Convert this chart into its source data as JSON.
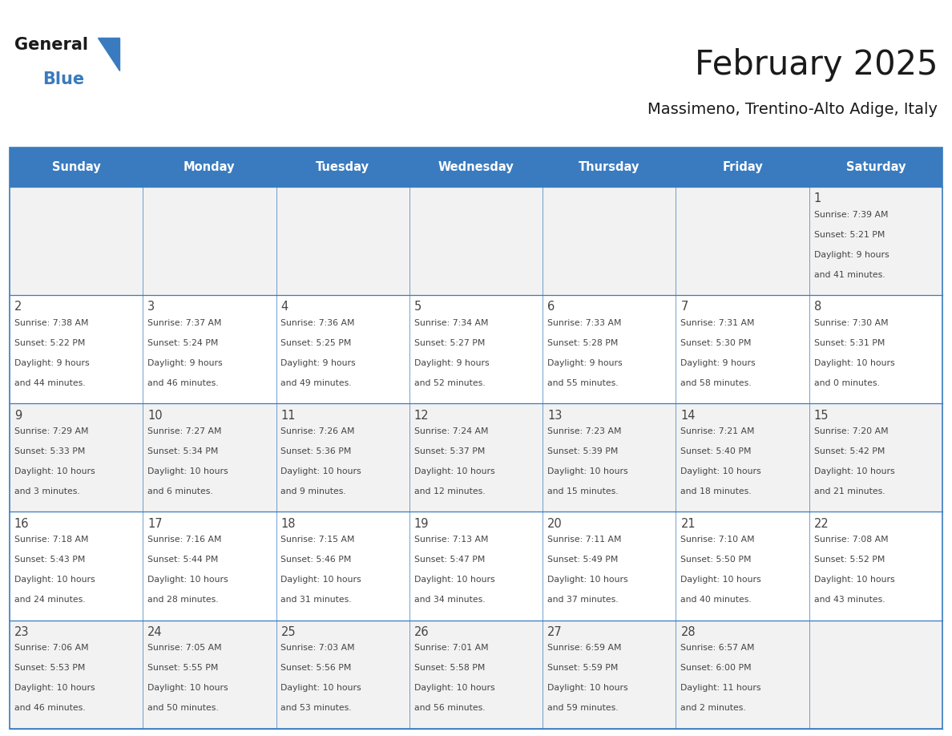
{
  "title": "February 2025",
  "subtitle": "Massimeno, Trentino-Alto Adige, Italy",
  "days_of_week": [
    "Sunday",
    "Monday",
    "Tuesday",
    "Wednesday",
    "Thursday",
    "Friday",
    "Saturday"
  ],
  "header_bg": "#3a7bbf",
  "header_text": "#ffffff",
  "cell_bg_even": "#f2f2f2",
  "cell_bg_odd": "#ffffff",
  "border_color": "#3a7bbf",
  "text_color": "#444444",
  "title_color": "#1a1a1a",
  "logo_general_color": "#1a1a1a",
  "logo_blue_color": "#3a7bbf",
  "fig_width": 11.88,
  "fig_height": 9.18,
  "calendar_data": [
    [
      null,
      null,
      null,
      null,
      null,
      null,
      {
        "day": 1,
        "sunrise": "7:39 AM",
        "sunset": "5:21 PM",
        "daylight_h": "9 hours",
        "daylight_m": "41 minutes."
      }
    ],
    [
      {
        "day": 2,
        "sunrise": "7:38 AM",
        "sunset": "5:22 PM",
        "daylight_h": "9 hours",
        "daylight_m": "44 minutes."
      },
      {
        "day": 3,
        "sunrise": "7:37 AM",
        "sunset": "5:24 PM",
        "daylight_h": "9 hours",
        "daylight_m": "46 minutes."
      },
      {
        "day": 4,
        "sunrise": "7:36 AM",
        "sunset": "5:25 PM",
        "daylight_h": "9 hours",
        "daylight_m": "49 minutes."
      },
      {
        "day": 5,
        "sunrise": "7:34 AM",
        "sunset": "5:27 PM",
        "daylight_h": "9 hours",
        "daylight_m": "52 minutes."
      },
      {
        "day": 6,
        "sunrise": "7:33 AM",
        "sunset": "5:28 PM",
        "daylight_h": "9 hours",
        "daylight_m": "55 minutes."
      },
      {
        "day": 7,
        "sunrise": "7:31 AM",
        "sunset": "5:30 PM",
        "daylight_h": "9 hours",
        "daylight_m": "58 minutes."
      },
      {
        "day": 8,
        "sunrise": "7:30 AM",
        "sunset": "5:31 PM",
        "daylight_h": "10 hours",
        "daylight_m": "0 minutes."
      }
    ],
    [
      {
        "day": 9,
        "sunrise": "7:29 AM",
        "sunset": "5:33 PM",
        "daylight_h": "10 hours",
        "daylight_m": "3 minutes."
      },
      {
        "day": 10,
        "sunrise": "7:27 AM",
        "sunset": "5:34 PM",
        "daylight_h": "10 hours",
        "daylight_m": "6 minutes."
      },
      {
        "day": 11,
        "sunrise": "7:26 AM",
        "sunset": "5:36 PM",
        "daylight_h": "10 hours",
        "daylight_m": "9 minutes."
      },
      {
        "day": 12,
        "sunrise": "7:24 AM",
        "sunset": "5:37 PM",
        "daylight_h": "10 hours",
        "daylight_m": "12 minutes."
      },
      {
        "day": 13,
        "sunrise": "7:23 AM",
        "sunset": "5:39 PM",
        "daylight_h": "10 hours",
        "daylight_m": "15 minutes."
      },
      {
        "day": 14,
        "sunrise": "7:21 AM",
        "sunset": "5:40 PM",
        "daylight_h": "10 hours",
        "daylight_m": "18 minutes."
      },
      {
        "day": 15,
        "sunrise": "7:20 AM",
        "sunset": "5:42 PM",
        "daylight_h": "10 hours",
        "daylight_m": "21 minutes."
      }
    ],
    [
      {
        "day": 16,
        "sunrise": "7:18 AM",
        "sunset": "5:43 PM",
        "daylight_h": "10 hours",
        "daylight_m": "24 minutes."
      },
      {
        "day": 17,
        "sunrise": "7:16 AM",
        "sunset": "5:44 PM",
        "daylight_h": "10 hours",
        "daylight_m": "28 minutes."
      },
      {
        "day": 18,
        "sunrise": "7:15 AM",
        "sunset": "5:46 PM",
        "daylight_h": "10 hours",
        "daylight_m": "31 minutes."
      },
      {
        "day": 19,
        "sunrise": "7:13 AM",
        "sunset": "5:47 PM",
        "daylight_h": "10 hours",
        "daylight_m": "34 minutes."
      },
      {
        "day": 20,
        "sunrise": "7:11 AM",
        "sunset": "5:49 PM",
        "daylight_h": "10 hours",
        "daylight_m": "37 minutes."
      },
      {
        "day": 21,
        "sunrise": "7:10 AM",
        "sunset": "5:50 PM",
        "daylight_h": "10 hours",
        "daylight_m": "40 minutes."
      },
      {
        "day": 22,
        "sunrise": "7:08 AM",
        "sunset": "5:52 PM",
        "daylight_h": "10 hours",
        "daylight_m": "43 minutes."
      }
    ],
    [
      {
        "day": 23,
        "sunrise": "7:06 AM",
        "sunset": "5:53 PM",
        "daylight_h": "10 hours",
        "daylight_m": "46 minutes."
      },
      {
        "day": 24,
        "sunrise": "7:05 AM",
        "sunset": "5:55 PM",
        "daylight_h": "10 hours",
        "daylight_m": "50 minutes."
      },
      {
        "day": 25,
        "sunrise": "7:03 AM",
        "sunset": "5:56 PM",
        "daylight_h": "10 hours",
        "daylight_m": "53 minutes."
      },
      {
        "day": 26,
        "sunrise": "7:01 AM",
        "sunset": "5:58 PM",
        "daylight_h": "10 hours",
        "daylight_m": "56 minutes."
      },
      {
        "day": 27,
        "sunrise": "6:59 AM",
        "sunset": "5:59 PM",
        "daylight_h": "10 hours",
        "daylight_m": "59 minutes."
      },
      {
        "day": 28,
        "sunrise": "6:57 AM",
        "sunset": "6:00 PM",
        "daylight_h": "11 hours",
        "daylight_m": "2 minutes."
      },
      null
    ]
  ]
}
